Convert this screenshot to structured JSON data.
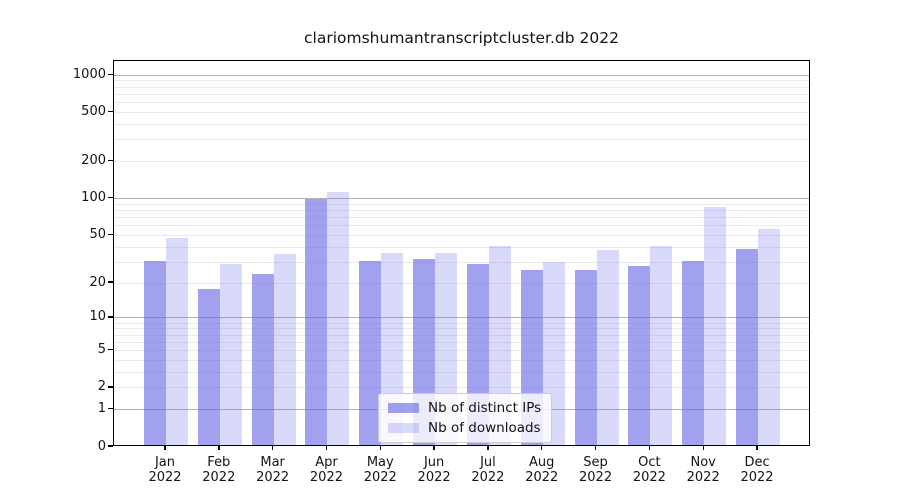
{
  "title": "clariomshumantranscriptcluster.db 2022",
  "colors": {
    "bar_base": "#6666e6",
    "ips_fill": "rgba(102,102,230,0.61)",
    "downloads_fill": "rgba(102,102,230,0.25)",
    "grid_major": "#b3b3b3",
    "grid_minor": "#eaeaea",
    "axis": "#000000",
    "legend_border": "#cccccc"
  },
  "legend": {
    "items": [
      {
        "key": "distinct-ips",
        "label": "Nb of distinct IPs"
      },
      {
        "key": "downloads",
        "label": "Nb of downloads"
      }
    ]
  },
  "chart_data": {
    "type": "bar",
    "title": "clariomshumantranscriptcluster.db 2022",
    "categories": [
      "Jan 2022",
      "Feb 2022",
      "Mar 2022",
      "Apr 2022",
      "May 2022",
      "Jun 2022",
      "Jul 2022",
      "Aug 2022",
      "Sep 2022",
      "Oct 2022",
      "Nov 2022",
      "Dec 2022"
    ],
    "series": [
      {
        "name": "Nb of distinct IPs",
        "values": [
          31,
          18,
          24,
          100,
          31,
          32,
          29,
          26,
          26,
          28,
          31,
          39
        ]
      },
      {
        "name": "Nb of downloads",
        "values": [
          48,
          29,
          35,
          113,
          36,
          36,
          41,
          30,
          38,
          41,
          85,
          57
        ]
      }
    ],
    "xlabel": "",
    "ylabel": "",
    "yscale": "log10(1+y)",
    "ylim": [
      0,
      1280
    ],
    "yticks_labeled": [
      0,
      1,
      2,
      5,
      10,
      20,
      50,
      100,
      200,
      500,
      1000
    ],
    "grid_major_at": [
      1,
      10,
      100,
      1000
    ],
    "grid_minor_at": [
      2,
      3,
      4,
      5,
      6,
      7,
      8,
      9,
      20,
      30,
      40,
      50,
      60,
      70,
      80,
      90,
      200,
      300,
      400,
      500,
      600,
      700,
      800,
      900
    ],
    "grid": true,
    "legend_position": "lower center inside plot"
  }
}
